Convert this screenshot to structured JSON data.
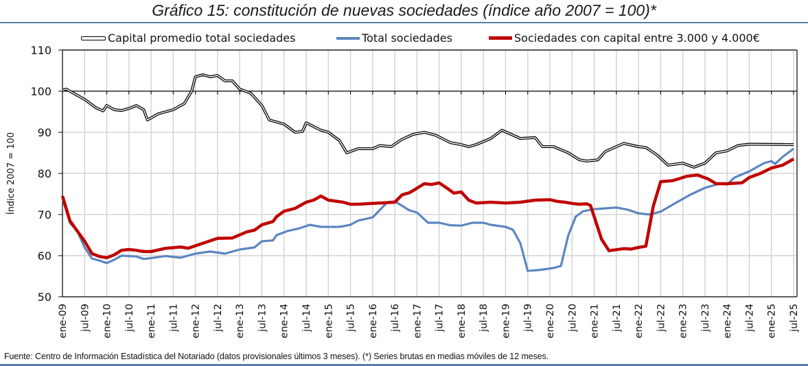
{
  "chart_data": {
    "type": "line",
    "title": "Gráfico 15: constitución de nuevas sociedades (índice año 2007 = 100)*",
    "xlabel": "",
    "ylabel": "Índice 2007 = 100",
    "ylim": [
      50,
      110
    ],
    "yticks": [
      50,
      60,
      70,
      80,
      90,
      100,
      110
    ],
    "x_range": [
      "2009-01",
      "2025-07"
    ],
    "xtick_labels": [
      "ene-09",
      "jul-09",
      "ene-10",
      "jul-10",
      "ene-11",
      "jul-11",
      "ene-12",
      "jul-12",
      "ene-13",
      "jul-13",
      "ene-14",
      "jul-14",
      "ene-15",
      "jul-15",
      "ene-16",
      "jul-16",
      "ene-17",
      "jul-17",
      "ene-18",
      "jul-18",
      "ene-19",
      "jul-19",
      "ene-20",
      "jul-20",
      "ene-21",
      "jul-21",
      "ene-22",
      "jul-22",
      "ene-23",
      "jul-23",
      "ene-24",
      "jul-24",
      "ene-25",
      "jul-25"
    ],
    "grid": true,
    "horizontal_reference_line": 100,
    "legend_position": "top",
    "series": [
      {
        "name": "Capital promedio total sociedades",
        "color": "#000000",
        "style": "double-line",
        "points": [
          [
            "2009-01",
            100.2
          ],
          [
            "2009-02",
            100.5
          ],
          [
            "2009-04",
            99.5
          ],
          [
            "2009-07",
            98.0
          ],
          [
            "2009-10",
            96.0
          ],
          [
            "2009-12",
            95.2
          ],
          [
            "2010-01",
            96.5
          ],
          [
            "2010-03",
            95.5
          ],
          [
            "2010-05",
            95.3
          ],
          [
            "2010-07",
            95.8
          ],
          [
            "2010-09",
            96.5
          ],
          [
            "2010-11",
            95.5
          ],
          [
            "2010-12",
            93.0
          ],
          [
            "2011-03",
            94.5
          ],
          [
            "2011-07",
            95.5
          ],
          [
            "2011-10",
            97.0
          ],
          [
            "2011-12",
            100.0
          ],
          [
            "2012-01",
            103.5
          ],
          [
            "2012-03",
            104.0
          ],
          [
            "2012-05",
            103.5
          ],
          [
            "2012-07",
            103.8
          ],
          [
            "2012-09",
            102.5
          ],
          [
            "2012-11",
            102.5
          ],
          [
            "2013-01",
            100.5
          ],
          [
            "2013-04",
            99.5
          ],
          [
            "2013-07",
            96.5
          ],
          [
            "2013-09",
            93.0
          ],
          [
            "2013-11",
            92.5
          ],
          [
            "2014-01",
            92.0
          ],
          [
            "2014-04",
            90.0
          ],
          [
            "2014-06",
            90.2
          ],
          [
            "2014-07",
            92.3
          ],
          [
            "2014-11",
            90.5
          ],
          [
            "2015-01",
            90.0
          ],
          [
            "2015-04",
            88.0
          ],
          [
            "2015-06",
            85.0
          ],
          [
            "2015-09",
            86.0
          ],
          [
            "2016-01",
            86.0
          ],
          [
            "2016-03",
            86.8
          ],
          [
            "2016-06",
            86.5
          ],
          [
            "2016-09",
            88.3
          ],
          [
            "2016-12",
            89.5
          ],
          [
            "2017-03",
            90.0
          ],
          [
            "2017-06",
            89.3
          ],
          [
            "2017-10",
            87.5
          ],
          [
            "2018-01",
            87.0
          ],
          [
            "2018-03",
            86.5
          ],
          [
            "2018-05",
            87.0
          ],
          [
            "2018-09",
            88.5
          ],
          [
            "2018-12",
            90.5
          ],
          [
            "2019-05",
            88.5
          ],
          [
            "2019-09",
            88.7
          ],
          [
            "2019-11",
            86.5
          ],
          [
            "2020-02",
            86.5
          ],
          [
            "2020-06",
            85.0
          ],
          [
            "2020-09",
            83.3
          ],
          [
            "2020-11",
            83.0
          ],
          [
            "2021-02",
            83.3
          ],
          [
            "2021-04",
            85.3
          ],
          [
            "2021-09",
            87.3
          ],
          [
            "2022-01",
            86.5
          ],
          [
            "2022-03",
            86.3
          ],
          [
            "2022-06",
            84.5
          ],
          [
            "2022-09",
            82.0
          ],
          [
            "2023-01",
            82.5
          ],
          [
            "2023-04",
            81.5
          ],
          [
            "2023-07",
            82.5
          ],
          [
            "2023-10",
            85.0
          ],
          [
            "2024-01",
            85.5
          ],
          [
            "2024-04",
            86.8
          ],
          [
            "2024-07",
            87.1
          ],
          [
            "2025-07",
            87.0
          ]
        ]
      },
      {
        "name": "Total sociedades",
        "color": "#5b86c0",
        "style": "solid",
        "points": [
          [
            "2009-01",
            74.0
          ],
          [
            "2009-03",
            68.0
          ],
          [
            "2009-05",
            66.0
          ],
          [
            "2009-07",
            62.0
          ],
          [
            "2009-09",
            59.3
          ],
          [
            "2009-11",
            58.8
          ],
          [
            "2010-01",
            58.2
          ],
          [
            "2010-03",
            59.0
          ],
          [
            "2010-05",
            60.0
          ],
          [
            "2010-09",
            59.8
          ],
          [
            "2010-11",
            59.2
          ],
          [
            "2011-01",
            59.4
          ],
          [
            "2011-05",
            59.9
          ],
          [
            "2011-09",
            59.5
          ],
          [
            "2012-01",
            60.5
          ],
          [
            "2012-05",
            61.0
          ],
          [
            "2012-09",
            60.5
          ],
          [
            "2013-01",
            61.5
          ],
          [
            "2013-05",
            62.0
          ],
          [
            "2013-07",
            63.5
          ],
          [
            "2013-10",
            63.7
          ],
          [
            "2013-11",
            65.0
          ],
          [
            "2014-02",
            66.0
          ],
          [
            "2014-05",
            66.6
          ],
          [
            "2014-08",
            67.5
          ],
          [
            "2014-11",
            67.0
          ],
          [
            "2015-01",
            67.0
          ],
          [
            "2015-04",
            67.0
          ],
          [
            "2015-07",
            67.5
          ],
          [
            "2015-09",
            68.5
          ],
          [
            "2016-01",
            69.3
          ],
          [
            "2016-05",
            73.0
          ],
          [
            "2016-07",
            73.2
          ],
          [
            "2016-11",
            71.0
          ],
          [
            "2017-01",
            70.5
          ],
          [
            "2017-04",
            68.0
          ],
          [
            "2017-07",
            68.0
          ],
          [
            "2017-10",
            67.4
          ],
          [
            "2018-01",
            67.3
          ],
          [
            "2018-04",
            68.0
          ],
          [
            "2018-07",
            68.0
          ],
          [
            "2018-09",
            67.5
          ],
          [
            "2019-01",
            67.0
          ],
          [
            "2019-03",
            66.3
          ],
          [
            "2019-05",
            63.0
          ],
          [
            "2019-07",
            56.3
          ],
          [
            "2019-10",
            56.5
          ],
          [
            "2020-02",
            57.0
          ],
          [
            "2020-04",
            57.5
          ],
          [
            "2020-06",
            65.0
          ],
          [
            "2020-08",
            69.5
          ],
          [
            "2020-10",
            70.8
          ],
          [
            "2021-01",
            71.3
          ],
          [
            "2021-04",
            71.5
          ],
          [
            "2021-07",
            71.7
          ],
          [
            "2021-10",
            71.2
          ],
          [
            "2022-01",
            70.3
          ],
          [
            "2022-04",
            70.0
          ],
          [
            "2022-07",
            70.7
          ],
          [
            "2022-11",
            72.8
          ],
          [
            "2023-03",
            74.8
          ],
          [
            "2023-07",
            76.5
          ],
          [
            "2023-11",
            77.5
          ],
          [
            "2024-01",
            77.3
          ],
          [
            "2024-03",
            79.0
          ],
          [
            "2024-07",
            80.5
          ],
          [
            "2024-09",
            81.5
          ],
          [
            "2024-11",
            82.5
          ],
          [
            "2025-01",
            83.0
          ],
          [
            "2025-02",
            82.3
          ],
          [
            "2025-04",
            84.0
          ],
          [
            "2025-07",
            86.0
          ]
        ]
      },
      {
        "name": "Sociedades con capital entre 3.000 y 4.000€",
        "color": "#c00000",
        "style": "thick",
        "points": [
          [
            "2009-01",
            74.5
          ],
          [
            "2009-03",
            68.5
          ],
          [
            "2009-05",
            66.0
          ],
          [
            "2009-07",
            63.5
          ],
          [
            "2009-09",
            60.5
          ],
          [
            "2009-11",
            59.8
          ],
          [
            "2010-01",
            59.5
          ],
          [
            "2010-03",
            60.2
          ],
          [
            "2010-05",
            61.3
          ],
          [
            "2010-07",
            61.5
          ],
          [
            "2010-09",
            61.3
          ],
          [
            "2010-11",
            61.0
          ],
          [
            "2011-01",
            61.0
          ],
          [
            "2011-05",
            61.8
          ],
          [
            "2011-09",
            62.1
          ],
          [
            "2011-11",
            61.8
          ],
          [
            "2012-03",
            63.0
          ],
          [
            "2012-07",
            64.2
          ],
          [
            "2012-11",
            64.3
          ],
          [
            "2013-03",
            65.8
          ],
          [
            "2013-05",
            66.2
          ],
          [
            "2013-07",
            67.5
          ],
          [
            "2013-10",
            68.3
          ],
          [
            "2013-11",
            69.5
          ],
          [
            "2014-01",
            70.8
          ],
          [
            "2014-04",
            71.5
          ],
          [
            "2014-07",
            73.0
          ],
          [
            "2014-09",
            73.5
          ],
          [
            "2014-11",
            74.5
          ],
          [
            "2015-01",
            73.5
          ],
          [
            "2015-05",
            73.0
          ],
          [
            "2015-07",
            72.5
          ],
          [
            "2015-09",
            72.5
          ],
          [
            "2016-01",
            72.7
          ],
          [
            "2016-03",
            72.8
          ],
          [
            "2016-07",
            73.0
          ],
          [
            "2016-09",
            74.8
          ],
          [
            "2016-11",
            75.3
          ],
          [
            "2017-03",
            77.5
          ],
          [
            "2017-05",
            77.3
          ],
          [
            "2017-07",
            77.7
          ],
          [
            "2017-09",
            76.5
          ],
          [
            "2017-11",
            75.2
          ],
          [
            "2018-01",
            75.5
          ],
          [
            "2018-03",
            73.5
          ],
          [
            "2018-05",
            72.8
          ],
          [
            "2018-09",
            73.0
          ],
          [
            "2019-01",
            72.8
          ],
          [
            "2019-05",
            73.0
          ],
          [
            "2019-09",
            73.5
          ],
          [
            "2020-01",
            73.6
          ],
          [
            "2020-03",
            73.2
          ],
          [
            "2020-05",
            73.0
          ],
          [
            "2020-07",
            72.7
          ],
          [
            "2020-09",
            72.5
          ],
          [
            "2020-11",
            72.6
          ],
          [
            "2020-12",
            72.2
          ],
          [
            "2021-03",
            64.0
          ],
          [
            "2021-05",
            61.2
          ],
          [
            "2021-09",
            61.7
          ],
          [
            "2021-11",
            61.6
          ],
          [
            "2022-01",
            62.0
          ],
          [
            "2022-03",
            62.3
          ],
          [
            "2022-05",
            72.0
          ],
          [
            "2022-07",
            78.0
          ],
          [
            "2022-10",
            78.2
          ],
          [
            "2022-12",
            78.7
          ],
          [
            "2023-02",
            79.3
          ],
          [
            "2023-05",
            79.6
          ],
          [
            "2023-08",
            78.6
          ],
          [
            "2023-10",
            77.5
          ],
          [
            "2024-01",
            77.5
          ],
          [
            "2024-05",
            77.7
          ],
          [
            "2024-07",
            79.0
          ],
          [
            "2024-10",
            80.0
          ],
          [
            "2025-01",
            81.3
          ],
          [
            "2025-04",
            82.0
          ],
          [
            "2025-07",
            83.5
          ]
        ]
      }
    ]
  },
  "header": {
    "title": "Gráfico 15: constitución de nuevas sociedades (índice año 2007 = 100)*"
  },
  "footer": {
    "source": "Fuente: Centro de Información Estadística del Notariado (datos provisionales últimos 3 meses). (*) Series brutas en medias móviles de 12 meses."
  }
}
